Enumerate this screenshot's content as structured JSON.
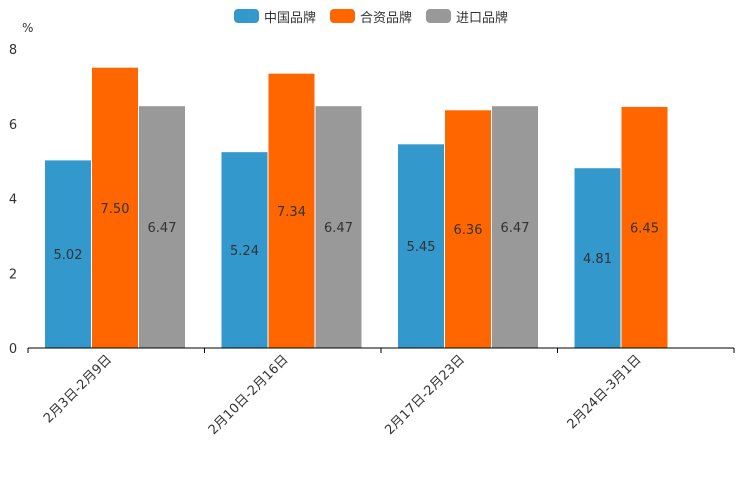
{
  "chart_data": {
    "type": "bar",
    "unit": "%",
    "categories": [
      "2月3日-2月9日",
      "2月10日-2月16日",
      "2月17日-2月23日",
      "2月24日-3月1日"
    ],
    "series": [
      {
        "name": "中国品牌",
        "color": "#3399CC",
        "values": [
          5.02,
          5.24,
          5.45,
          4.81
        ]
      },
      {
        "name": "合资品牌",
        "color": "#FF6600",
        "values": [
          7.5,
          7.34,
          6.36,
          6.45
        ]
      },
      {
        "name": "进口品牌",
        "color": "#999999",
        "values": [
          6.47,
          6.47,
          6.47,
          null
        ]
      }
    ],
    "ylim": [
      0,
      8
    ],
    "yticks": [
      0,
      2,
      4,
      6,
      8
    ],
    "legend_position": "top-center",
    "grid": false
  }
}
